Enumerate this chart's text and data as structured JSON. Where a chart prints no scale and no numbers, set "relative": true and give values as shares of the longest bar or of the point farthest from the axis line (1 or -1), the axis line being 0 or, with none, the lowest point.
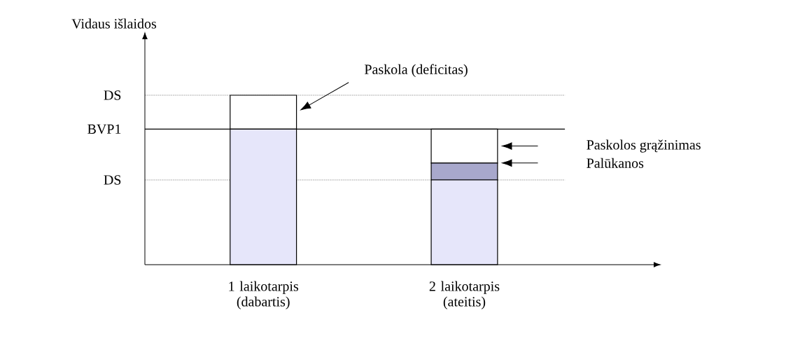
{
  "chart_data": {
    "type": "bar",
    "stacked": true,
    "relative": true,
    "ylabel": "Vidaus išlaidos",
    "categories": [
      "1 laikotarpis (dabartis)",
      "2 laikotarpis (ateitis)"
    ],
    "series": [
      {
        "color": "#e6e6fa",
        "values": [
          0.8,
          0.5
        ]
      },
      {
        "color": "#a8a8cc",
        "values": [
          0,
          0.1
        ]
      },
      {
        "color": "#ffffff",
        "values": [
          0.2,
          0.2
        ]
      }
    ],
    "ref_lines": [
      {
        "axis": "y",
        "value": 1.0,
        "label": "DS",
        "line_style": "dotted"
      },
      {
        "axis": "y",
        "value": 0.8,
        "label": "BVP1",
        "line_style": "solid"
      },
      {
        "axis": "y",
        "value": 0.5,
        "label": "DS",
        "line_style": "dotted"
      }
    ],
    "annotations": [
      "Paskola (deficitas)",
      "Paskolos grąžinimas",
      "Palūkanos"
    ]
  }
}
